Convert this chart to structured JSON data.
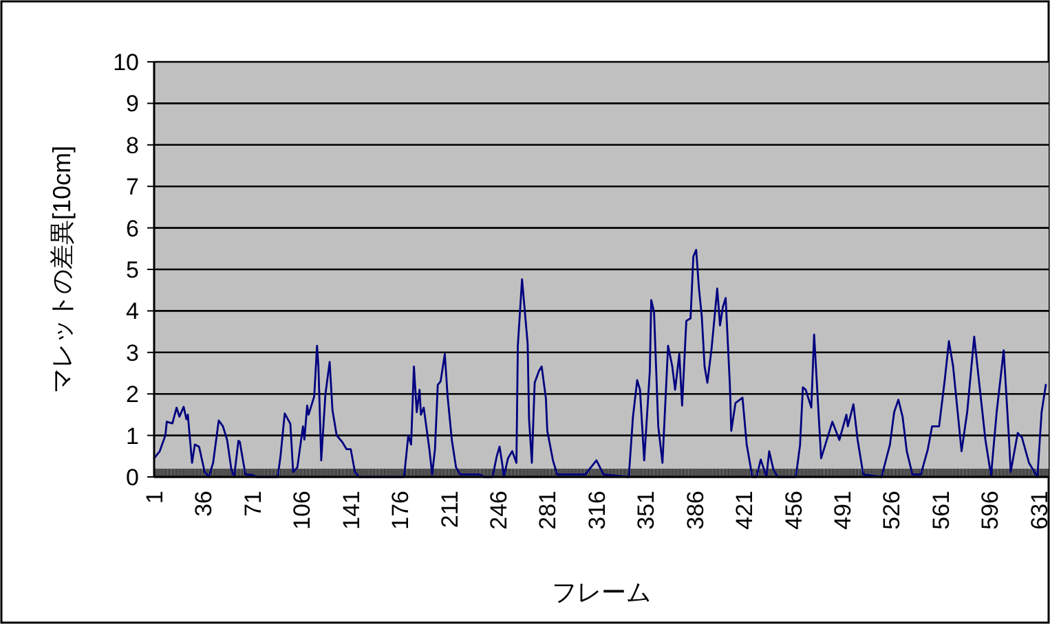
{
  "chart_data": {
    "type": "line",
    "xlabel": "フレーム",
    "ylabel": "マレットの差異[10cm]",
    "color": "#000080",
    "grid": "y",
    "xlim": [
      1,
      638
    ],
    "xticks": [
      1,
      36,
      71,
      106,
      141,
      176,
      211,
      246,
      281,
      316,
      351,
      386,
      421,
      456,
      491,
      526,
      561,
      596,
      631
    ],
    "ylim": [
      0,
      10
    ],
    "yticks": [
      0,
      1,
      2,
      3,
      4,
      5,
      6,
      7,
      8,
      9,
      10
    ],
    "x": [
      1,
      5,
      9,
      10,
      14,
      17,
      19,
      22,
      24,
      25,
      28,
      30,
      33,
      37,
      40,
      43,
      47,
      50,
      53,
      56,
      58,
      61,
      62,
      66,
      71,
      74,
      89,
      91,
      94,
      98,
      100,
      103,
      107,
      108,
      110,
      111,
      115,
      117,
      118,
      120,
      123,
      126,
      128,
      131,
      135,
      138,
      141,
      144,
      147,
      161,
      179,
      182,
      184,
      186,
      188,
      190,
      191,
      193,
      197,
      199,
      201,
      203,
      205,
      208,
      210,
      213,
      216,
      219,
      233,
      236,
      242,
      245,
      247,
      249,
      250,
      253,
      256,
      259,
      260,
      263,
      267,
      268,
      270,
      272,
      275,
      277,
      280,
      281,
      285,
      288,
      308,
      316,
      321,
      339,
      342,
      345,
      347,
      350,
      354,
      355,
      357,
      360,
      363,
      367,
      370,
      372,
      375,
      377,
      380,
      383,
      385,
      387,
      389,
      391,
      393,
      395,
      398,
      402,
      404,
      406,
      408,
      411,
      412,
      415,
      417,
      420,
      423,
      427,
      430,
      433,
      437,
      439,
      442,
      445,
      458,
      461,
      463,
      465,
      469,
      471,
      476,
      481,
      484,
      489,
      494,
      495,
      499,
      502,
      506,
      519,
      525,
      528,
      531,
      534,
      537,
      541,
      547,
      552,
      555,
      560,
      564,
      567,
      570,
      576,
      580,
      585,
      588,
      593,
      597,
      601,
      606,
      610,
      611,
      616,
      619,
      624,
      630,
      633,
      636
    ],
    "values": [
      0.45,
      0.62,
      1.0,
      1.33,
      1.29,
      1.67,
      1.45,
      1.69,
      1.39,
      1.5,
      0.34,
      0.78,
      0.73,
      0.12,
      0,
      0.34,
      1.36,
      1.22,
      0.89,
      0.18,
      0,
      0.87,
      0.85,
      0.06,
      0.05,
      0,
      0,
      0.5,
      1.53,
      1.28,
      0.12,
      0.23,
      1.22,
      0.9,
      1.72,
      1.5,
      1.94,
      3.16,
      2.66,
      0.4,
      2.0,
      2.77,
      1.61,
      1.0,
      0.84,
      0.67,
      0.67,
      0.12,
      0,
      0,
      0,
      1.0,
      0.78,
      2.66,
      1.56,
      2.1,
      1.5,
      1.67,
      0.67,
      0.06,
      0.67,
      2.22,
      2.3,
      2.96,
      1.94,
      0.89,
      0.23,
      0.06,
      0.06,
      0,
      0,
      0.5,
      0.73,
      0.29,
      0,
      0.45,
      0.62,
      0.34,
      3.16,
      4.76,
      3.21,
      1.39,
      0.34,
      2.27,
      2.55,
      2.66,
      1.89,
      1.11,
      0.4,
      0.06,
      0.06,
      0.4,
      0.06,
      0,
      1.45,
      2.33,
      2.1,
      0.4,
      2.55,
      4.26,
      3.98,
      1.22,
      0.34,
      3.16,
      2.66,
      2.1,
      2.96,
      1.72,
      3.76,
      3.82,
      5.31,
      5.47,
      4.54,
      3.87,
      2.66,
      2.27,
      3.1,
      4.54,
      3.65,
      4.09,
      4.31,
      2.22,
      1.11,
      1.78,
      1.83,
      1.91,
      0.78,
      0,
      0,
      0.42,
      0,
      0.62,
      0.18,
      0,
      0,
      0.78,
      2.16,
      2.1,
      1.67,
      3.43,
      0.45,
      1.0,
      1.33,
      0.89,
      1.5,
      1.22,
      1.75,
      0.89,
      0.06,
      0,
      0.78,
      1.56,
      1.86,
      1.45,
      0.62,
      0.06,
      0.06,
      0.67,
      1.22,
      1.22,
      2.33,
      3.27,
      2.66,
      0.62,
      1.56,
      3.38,
      2.44,
      0.89,
      0.03,
      1.56,
      3.05,
      0.78,
      0.12,
      1.06,
      0.95,
      0.34,
      0,
      1.56,
      2.22
    ]
  }
}
